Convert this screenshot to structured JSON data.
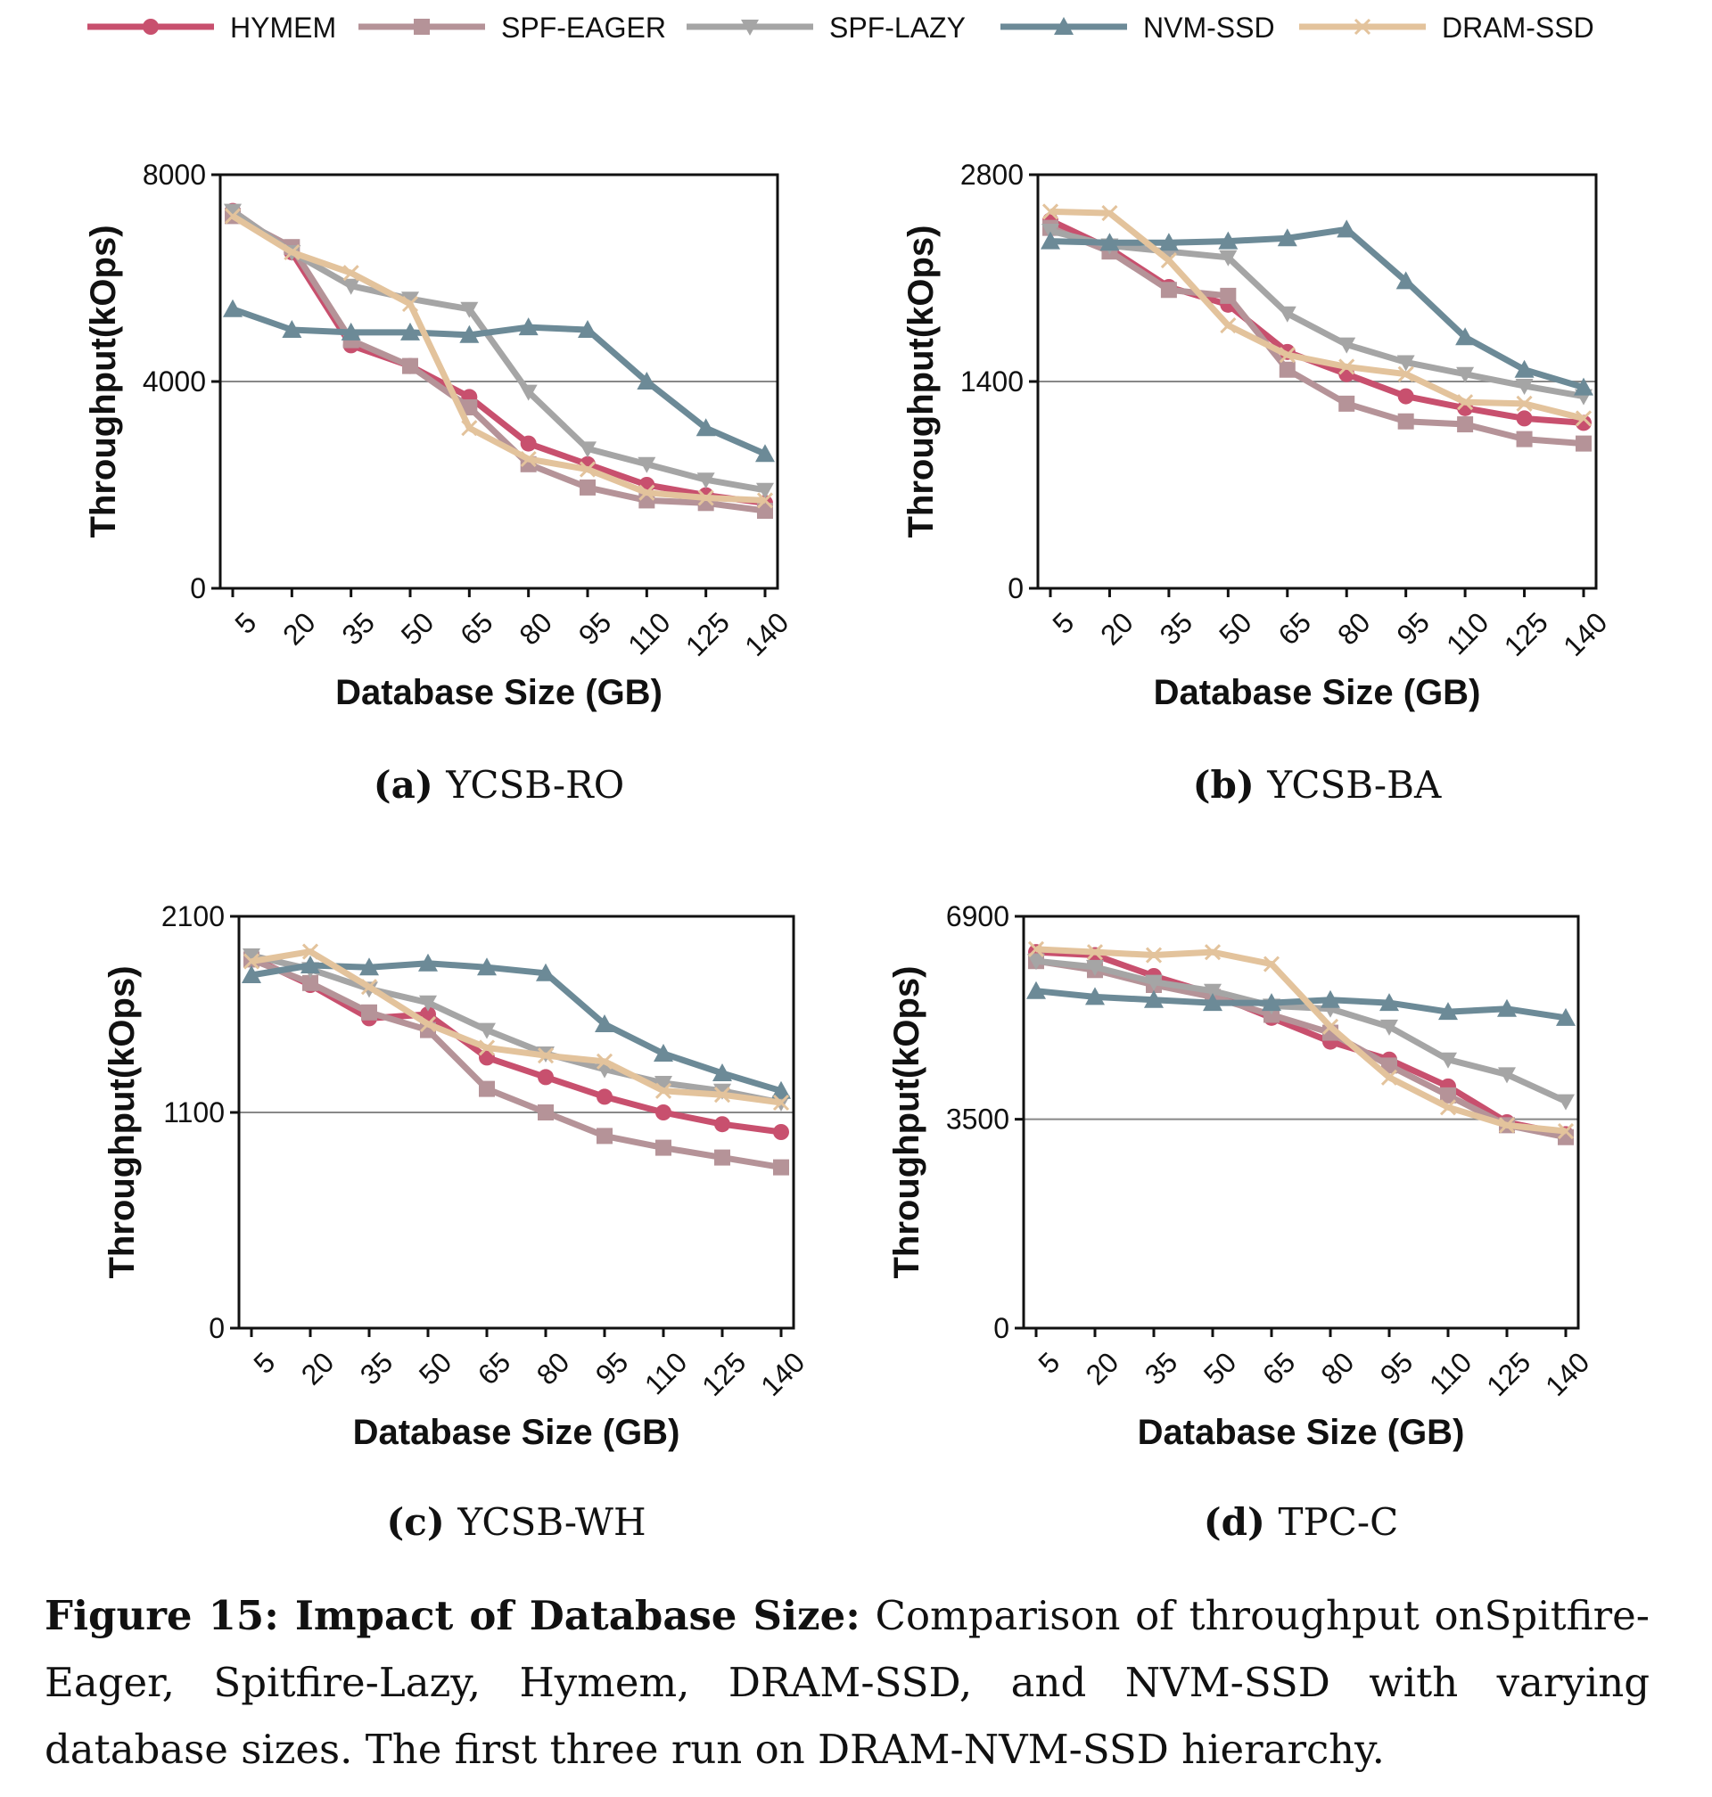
{
  "colors": {
    "HYMEM": "#c8506e",
    "SPF-EAGER": "#b59398",
    "SPF-LAZY": "#a5a5a5",
    "NVM-SSD": "#6c8a97",
    "DRAM-SSD": "#e3c39c"
  },
  "legend": [
    {
      "name": "HYMEM",
      "marker": "circle"
    },
    {
      "name": "SPF-EAGER",
      "marker": "square"
    },
    {
      "name": "SPF-LAZY",
      "marker": "triangle-down"
    },
    {
      "name": "NVM-SSD",
      "marker": "triangle-up"
    },
    {
      "name": "DRAM-SSD",
      "marker": "x"
    }
  ],
  "chart_data": [
    {
      "type": "line",
      "subcaption_label": "(a)",
      "subcaption_text": "YCSB-RO",
      "xlabel": "Database Size (GB)",
      "ylabel": "Throughput(kOps)",
      "categories": [
        "5",
        "20",
        "35",
        "50",
        "65",
        "80",
        "95",
        "110",
        "125",
        "140"
      ],
      "ylim": [
        0,
        8000
      ],
      "yticks": [
        "0",
        "4000",
        "8000"
      ],
      "ref_line": 4000,
      "series": [
        {
          "name": "HYMEM",
          "values": [
            7300,
            6500,
            4700,
            4300,
            3700,
            2800,
            2400,
            2000,
            1800,
            1650
          ]
        },
        {
          "name": "SPF-EAGER",
          "values": [
            7200,
            6600,
            4800,
            4300,
            3500,
            2400,
            1950,
            1700,
            1650,
            1500
          ]
        },
        {
          "name": "SPF-LAZY",
          "values": [
            7300,
            6500,
            5850,
            5600,
            5400,
            3800,
            2700,
            2400,
            2100,
            1900
          ]
        },
        {
          "name": "NVM-SSD",
          "values": [
            5400,
            5000,
            4950,
            4950,
            4900,
            5050,
            5000,
            4000,
            3100,
            2600
          ]
        },
        {
          "name": "DRAM-SSD",
          "values": [
            7200,
            6500,
            6100,
            5500,
            3100,
            2500,
            2300,
            1850,
            1750,
            1700
          ]
        }
      ]
    },
    {
      "type": "line",
      "subcaption_label": "(b)",
      "subcaption_text": "YCSB-BA",
      "xlabel": "Database Size (GB)",
      "ylabel": "Throughput(kOps)",
      "categories": [
        "5",
        "20",
        "35",
        "50",
        "65",
        "80",
        "95",
        "110",
        "125",
        "140"
      ],
      "ylim": [
        0,
        2800
      ],
      "yticks": [
        "0",
        "1400",
        "2800"
      ],
      "ref_line": 1400,
      "series": [
        {
          "name": "HYMEM",
          "values": [
            2490,
            2300,
            2040,
            1920,
            1600,
            1450,
            1300,
            1220,
            1150,
            1120
          ]
        },
        {
          "name": "SPF-EAGER",
          "values": [
            2440,
            2280,
            2020,
            1980,
            1480,
            1250,
            1130,
            1110,
            1010,
            980
          ]
        },
        {
          "name": "SPF-LAZY",
          "values": [
            2420,
            2320,
            2280,
            2240,
            1860,
            1650,
            1530,
            1450,
            1370,
            1300
          ]
        },
        {
          "name": "NVM-SSD",
          "values": [
            2350,
            2340,
            2340,
            2350,
            2370,
            2430,
            2080,
            1700,
            1480,
            1360
          ]
        },
        {
          "name": "DRAM-SSD",
          "values": [
            2550,
            2540,
            2220,
            1780,
            1580,
            1500,
            1450,
            1260,
            1250,
            1150
          ]
        }
      ]
    },
    {
      "type": "line",
      "subcaption_label": "(c)",
      "subcaption_text": "YCSB-WH",
      "xlabel": "Database Size (GB)",
      "ylabel": "Throughput(kOps)",
      "categories": [
        "5",
        "20",
        "35",
        "50",
        "65",
        "80",
        "95",
        "110",
        "125",
        "140"
      ],
      "ylim": [
        0,
        2100
      ],
      "yticks": [
        "0",
        "1100",
        "2100"
      ],
      "ref_line": 1100,
      "series": [
        {
          "name": "HYMEM",
          "values": [
            1890,
            1750,
            1580,
            1600,
            1380,
            1280,
            1180,
            1100,
            1040,
            1000
          ]
        },
        {
          "name": "SPF-EAGER",
          "values": [
            1880,
            1760,
            1610,
            1520,
            1220,
            1100,
            980,
            920,
            870,
            820
          ]
        },
        {
          "name": "SPF-LAZY",
          "values": [
            1900,
            1830,
            1730,
            1660,
            1520,
            1400,
            1320,
            1250,
            1210,
            1150
          ]
        },
        {
          "name": "NVM-SSD",
          "values": [
            1800,
            1850,
            1840,
            1860,
            1840,
            1810,
            1550,
            1400,
            1300,
            1210
          ]
        },
        {
          "name": "DRAM-SSD",
          "values": [
            1870,
            1920,
            1740,
            1550,
            1430,
            1390,
            1360,
            1210,
            1190,
            1150
          ]
        }
      ]
    },
    {
      "type": "line",
      "subcaption_label": "(d)",
      "subcaption_text": "TPC-C",
      "xlabel": "Database Size (GB)",
      "ylabel": "Throughput(kOps)",
      "categories": [
        "5",
        "20",
        "35",
        "50",
        "65",
        "80",
        "95",
        "110",
        "125",
        "140"
      ],
      "ylim": [
        0,
        6900
      ],
      "yticks": [
        "0",
        "3500",
        "6900"
      ],
      "ref_line": 3500,
      "series": [
        {
          "name": "HYMEM",
          "values": [
            6300,
            6250,
            5900,
            5600,
            5200,
            4800,
            4500,
            4050,
            3450,
            3250
          ]
        },
        {
          "name": "SPF-EAGER",
          "values": [
            6150,
            6000,
            5750,
            5550,
            5250,
            4950,
            4400,
            3900,
            3400,
            3200
          ]
        },
        {
          "name": "SPF-LAZY",
          "values": [
            6150,
            6050,
            5800,
            5650,
            5400,
            5350,
            5050,
            4500,
            4250,
            3800
          ]
        },
        {
          "name": "NVM-SSD",
          "values": [
            5650,
            5550,
            5500,
            5450,
            5450,
            5500,
            5450,
            5300,
            5350,
            5200
          ]
        },
        {
          "name": "DRAM-SSD",
          "values": [
            6350,
            6300,
            6250,
            6300,
            6100,
            5050,
            4200,
            3700,
            3400,
            3300
          ]
        }
      ]
    }
  ],
  "caption": {
    "lead": "Figure 15: Impact of Database Size:",
    "body": "Comparison of throughput onSpitfire-Eager, Spitfire-Lazy, Hymem, DRAM-SSD, and NVM-SSD with varying database sizes. The first three run on DRAM-NVM-SSD hierarchy."
  }
}
